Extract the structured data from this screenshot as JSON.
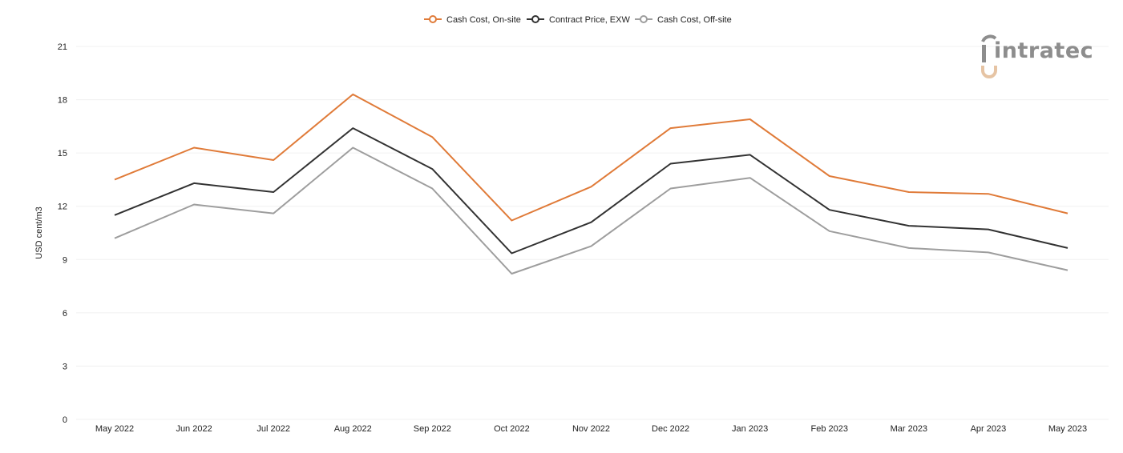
{
  "logo": {
    "text": "intratec"
  },
  "chart_data": {
    "type": "line",
    "title": "",
    "xlabel": "",
    "ylabel": "USD cent/m3",
    "ylim": [
      0,
      21
    ],
    "yticks": [
      0,
      3,
      6,
      9,
      12,
      15,
      18,
      21
    ],
    "grid": true,
    "legend_position": "top-center",
    "categories": [
      "May 2022",
      "Jun 2022",
      "Jul 2022",
      "Aug 2022",
      "Sep 2022",
      "Oct 2022",
      "Nov 2022",
      "Dec 2022",
      "Jan 2023",
      "Feb 2023",
      "Mar 2023",
      "Apr 2023",
      "May 2023"
    ],
    "series": [
      {
        "name": "Cash Cost, On-site",
        "color": "#e07b39",
        "values": [
          13.5,
          15.3,
          14.6,
          18.3,
          15.9,
          11.2,
          13.1,
          16.4,
          16.9,
          13.7,
          12.8,
          12.7,
          11.6
        ]
      },
      {
        "name": "Contract Price, EXW",
        "color": "#333333",
        "values": [
          11.5,
          13.3,
          12.8,
          16.4,
          14.1,
          9.35,
          11.1,
          14.4,
          14.9,
          11.8,
          10.9,
          10.7,
          9.65
        ]
      },
      {
        "name": "Cash Cost, Off-site",
        "color": "#9e9e9e",
        "values": [
          10.2,
          12.1,
          11.6,
          15.3,
          13.0,
          8.2,
          9.75,
          13.0,
          13.6,
          10.6,
          9.65,
          9.4,
          8.4
        ]
      }
    ]
  }
}
